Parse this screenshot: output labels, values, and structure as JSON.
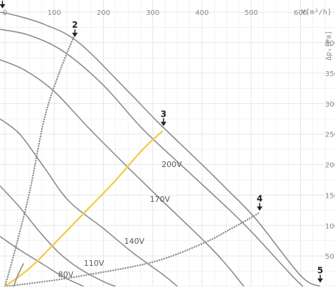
{
  "chart_data": {
    "type": "line",
    "title": "",
    "xlabel": "V[m³/h]",
    "ylabel": "Δpₛ[Pa]",
    "xlim": [
      -10,
      670
    ],
    "ylim": [
      0,
      470
    ],
    "x_ticks": [
      "0",
      "100",
      "200",
      "300",
      "400",
      "500",
      "600"
    ],
    "x_tick_values": [
      0,
      100,
      200,
      300,
      400,
      500,
      600
    ],
    "y_ticks": [
      "400",
      "350",
      "300",
      "250",
      "200",
      "150",
      "100",
      "50"
    ],
    "y_tick_values": [
      400,
      350,
      300,
      250,
      200,
      150,
      100,
      50
    ],
    "grid": true,
    "colors": {
      "grid": "#e6e6e6",
      "curve": "#8c8c8c",
      "dotted": "#8c8c8c",
      "yellow": "#f2ce4b",
      "marker": "#222222",
      "label": "#5a5a5a"
    },
    "fan_curves": [
      {
        "name": "200V",
        "label_at": [
          318,
          196
        ],
        "points": [
          [
            -10,
            450
          ],
          [
            20,
            445
          ],
          [
            80,
            430
          ],
          [
            150,
            400
          ],
          [
            250,
            320
          ],
          [
            310,
            270
          ],
          [
            400,
            200
          ],
          [
            450,
            160
          ],
          [
            510,
            110
          ],
          [
            600,
            18
          ],
          [
            640,
            0
          ]
        ]
      },
      {
        "name": "170V",
        "label_at": [
          294,
          139
        ],
        "points": [
          [
            -10,
            422
          ],
          [
            50,
            412
          ],
          [
            120,
            385
          ],
          [
            200,
            330
          ],
          [
            280,
            258
          ],
          [
            370,
            190
          ],
          [
            450,
            130
          ],
          [
            500,
            90
          ],
          [
            580,
            20
          ],
          [
            605,
            0
          ]
        ]
      },
      {
        "name": "140V",
        "label_at": [
          242,
          70
        ],
        "points": [
          [
            -10,
            372
          ],
          [
            40,
            355
          ],
          [
            100,
            320
          ],
          [
            170,
            260
          ],
          [
            250,
            195
          ],
          [
            320,
            140
          ],
          [
            410,
            70
          ],
          [
            450,
            35
          ],
          [
            485,
            0
          ]
        ]
      },
      {
        "name": "110V",
        "label_at": [
          160,
          34
        ],
        "points": [
          [
            -10,
            275
          ],
          [
            30,
            250
          ],
          [
            80,
            195
          ],
          [
            130,
            140
          ],
          [
            200,
            95
          ],
          [
            260,
            55
          ],
          [
            320,
            20
          ],
          [
            350,
            0
          ]
        ]
      },
      {
        "name": "80V",
        "label_at": [
          108,
          15
        ],
        "points": [
          [
            -10,
            165
          ],
          [
            30,
            130
          ],
          [
            70,
            90
          ],
          [
            110,
            55
          ],
          [
            150,
            30
          ],
          [
            200,
            8
          ],
          [
            225,
            0
          ]
        ]
      },
      {
        "name": "",
        "points": [
          [
            -10,
            82
          ],
          [
            30,
            60
          ],
          [
            80,
            35
          ],
          [
            120,
            15
          ],
          [
            160,
            0
          ]
        ]
      }
    ],
    "system_curves": [
      {
        "style": "dotted",
        "points": [
          [
            0,
            0
          ],
          [
            20,
            58
          ],
          [
            50,
            155
          ],
          [
            80,
            275
          ],
          [
            110,
            350
          ],
          [
            140,
            410
          ]
        ]
      },
      {
        "style": "solid-yellow",
        "points": [
          [
            0,
            0
          ],
          [
            50,
            30
          ],
          [
            100,
            70
          ],
          [
            160,
            120
          ],
          [
            220,
            170
          ],
          [
            280,
            225
          ],
          [
            320,
            255
          ]
        ]
      },
      {
        "style": "dotted",
        "points": [
          [
            0,
            0
          ],
          [
            80,
            8
          ],
          [
            160,
            18
          ],
          [
            300,
            40
          ],
          [
            400,
            70
          ],
          [
            460,
            95
          ],
          [
            515,
            120
          ]
        ]
      },
      {
        "style": "solid",
        "points": [
          [
            18,
            0
          ],
          [
            26,
            18
          ],
          [
            38,
            38
          ]
        ]
      }
    ],
    "markers": [
      {
        "label": "1",
        "x": -5,
        "y": 455
      },
      {
        "label": "2",
        "x": 142,
        "y": 408
      },
      {
        "label": "3",
        "x": 322,
        "y": 262
      },
      {
        "label": "4",
        "x": 517,
        "y": 123
      },
      {
        "label": "5",
        "x": 640,
        "y": 5
      }
    ]
  }
}
